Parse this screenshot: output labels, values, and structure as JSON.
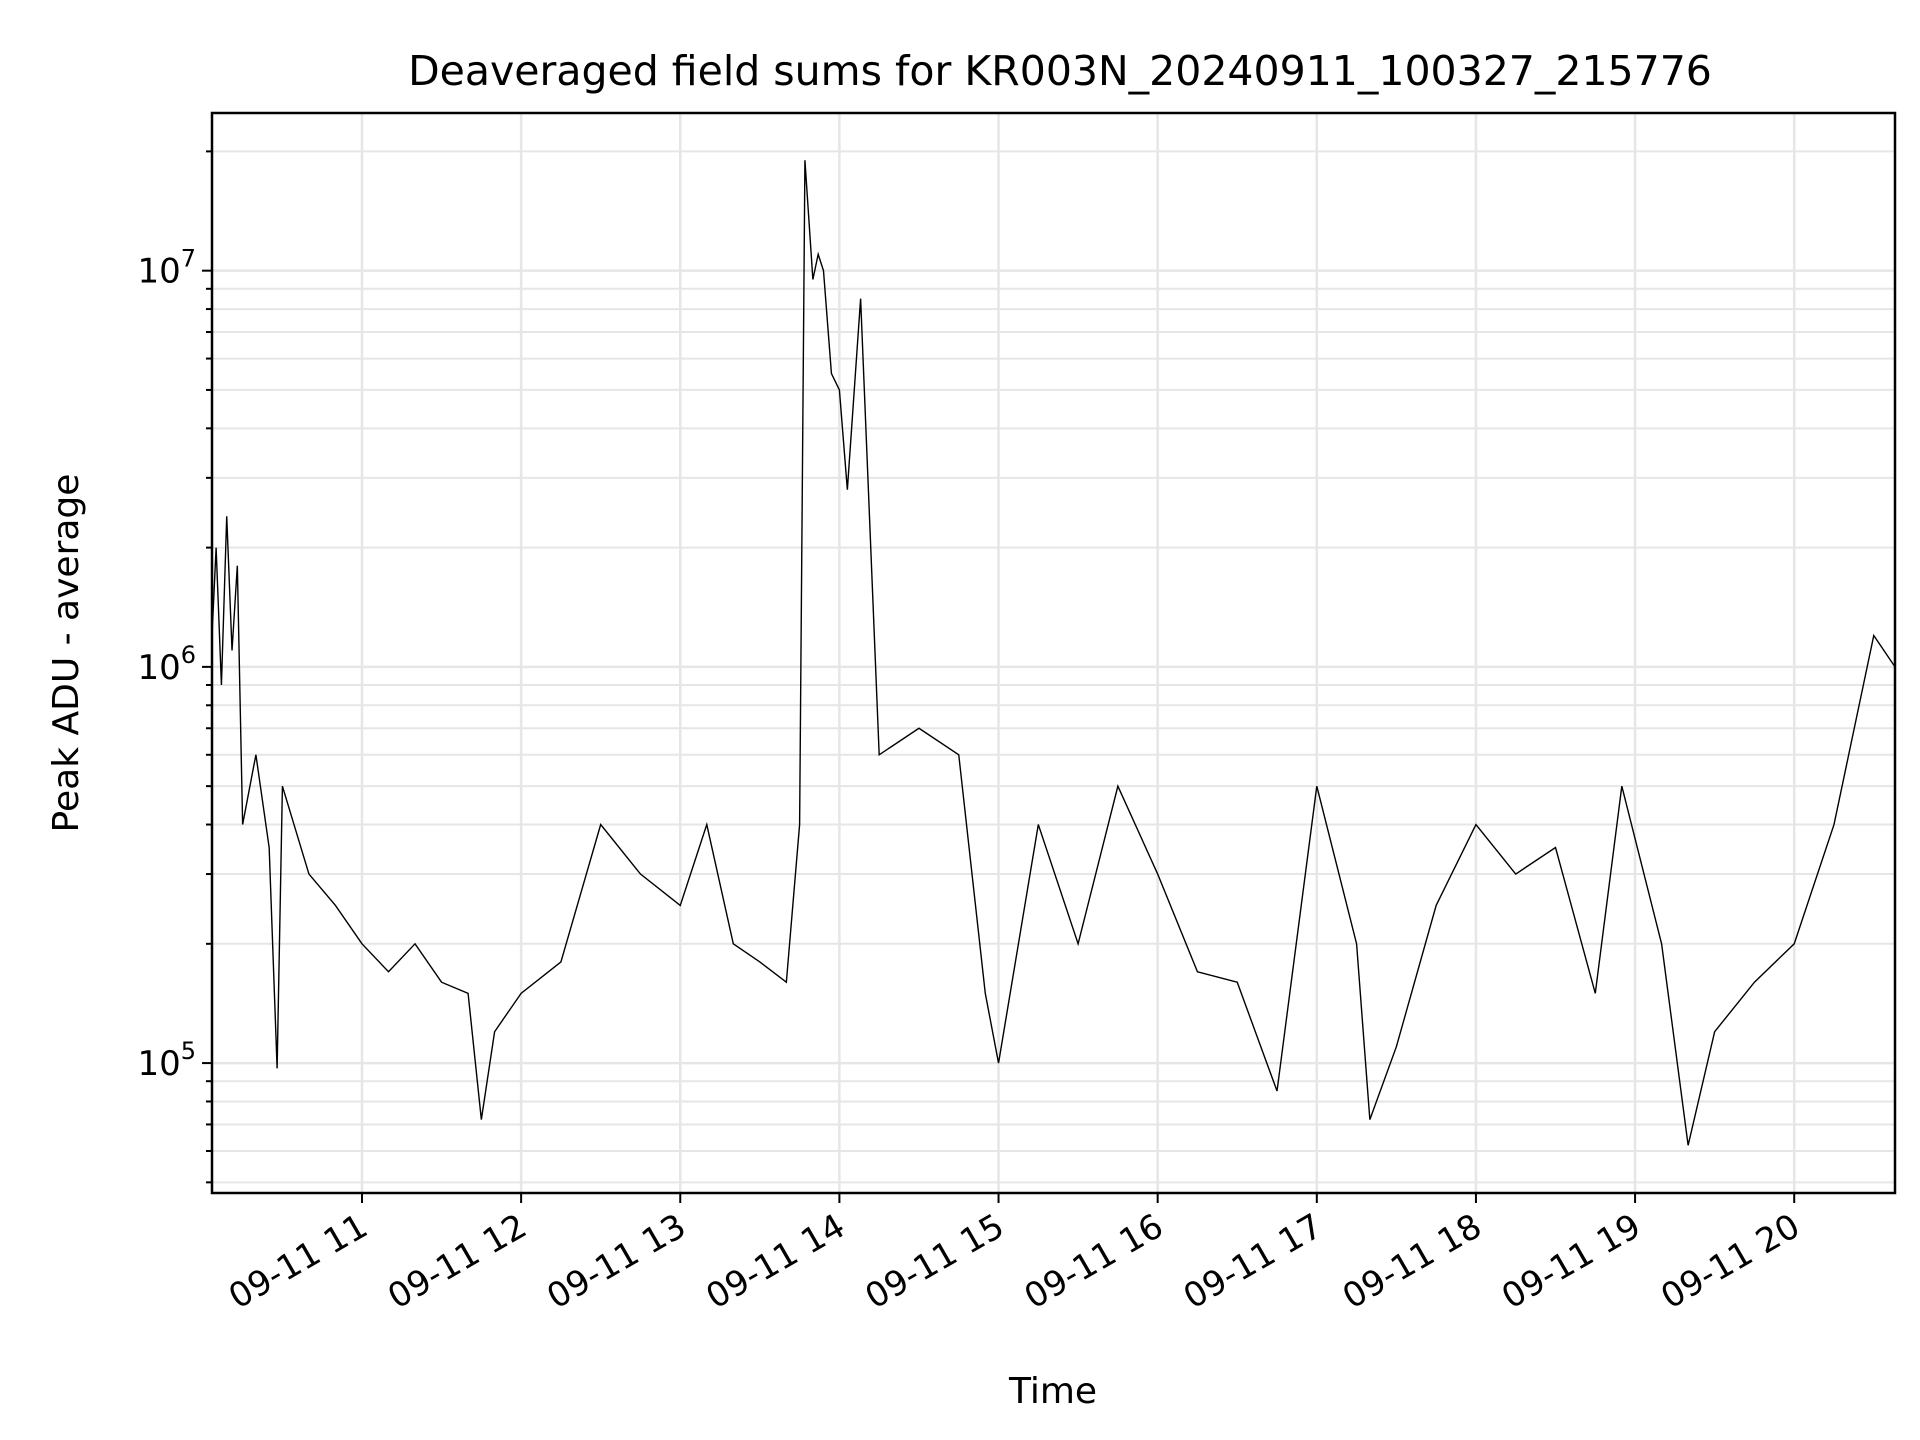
{
  "chart_data": {
    "type": "line",
    "title": "Deaveraged field sums for KR003N_20240911_100327_215776",
    "xlabel": "Time",
    "ylabel": "Peak ADU - average",
    "yscale": "log",
    "grid": true,
    "legend": "none",
    "x_start": "2024-09-11 10:03:27",
    "x_end": "2024-09-11 20:38",
    "xlim": [
      "2024-09-11 10:03:27",
      "2024-09-11 20:38"
    ],
    "ylim": [
      47000,
      25000000
    ],
    "x_tick_labels": [
      "09-11 11",
      "09-11 12",
      "09-11 13",
      "09-11 14",
      "09-11 15",
      "09-11 16",
      "09-11 17",
      "09-11 18",
      "09-11 19",
      "09-11 20"
    ],
    "x_tick_times": [
      "2024-09-11 11:00",
      "2024-09-11 12:00",
      "2024-09-11 13:00",
      "2024-09-11 14:00",
      "2024-09-11 15:00",
      "2024-09-11 16:00",
      "2024-09-11 17:00",
      "2024-09-11 18:00",
      "2024-09-11 19:00",
      "2024-09-11 20:00"
    ],
    "y_ticks": [
      {
        "value": 100000,
        "base": "10",
        "exp": "5"
      },
      {
        "value": 1000000,
        "base": "10",
        "exp": "6"
      },
      {
        "value": 10000000,
        "base": "10",
        "exp": "7"
      }
    ],
    "series": [
      {
        "color": "#000000",
        "points": [
          [
            "2024-09-11 10:03:27",
            1200000
          ],
          [
            "2024-09-11 10:05",
            2000000
          ],
          [
            "2024-09-11 10:07",
            900000
          ],
          [
            "2024-09-11 10:09",
            2400000
          ],
          [
            "2024-09-11 10:11",
            1100000
          ],
          [
            "2024-09-11 10:13",
            1800000
          ],
          [
            "2024-09-11 10:15",
            400000
          ],
          [
            "2024-09-11 10:20",
            600000
          ],
          [
            "2024-09-11 10:25",
            350000
          ],
          [
            "2024-09-11 10:28",
            97000
          ],
          [
            "2024-09-11 10:30",
            500000
          ],
          [
            "2024-09-11 10:40",
            300000
          ],
          [
            "2024-09-11 10:50",
            250000
          ],
          [
            "2024-09-11 11:00",
            200000
          ],
          [
            "2024-09-11 11:10",
            170000
          ],
          [
            "2024-09-11 11:20",
            200000
          ],
          [
            "2024-09-11 11:30",
            160000
          ],
          [
            "2024-09-11 11:40",
            150000
          ],
          [
            "2024-09-11 11:45",
            72000
          ],
          [
            "2024-09-11 11:50",
            120000
          ],
          [
            "2024-09-11 12:00",
            150000
          ],
          [
            "2024-09-11 12:15",
            180000
          ],
          [
            "2024-09-11 12:30",
            400000
          ],
          [
            "2024-09-11 12:45",
            300000
          ],
          [
            "2024-09-11 13:00",
            250000
          ],
          [
            "2024-09-11 13:10",
            400000
          ],
          [
            "2024-09-11 13:20",
            200000
          ],
          [
            "2024-09-11 13:30",
            180000
          ],
          [
            "2024-09-11 13:40",
            160000
          ],
          [
            "2024-09-11 13:45",
            400000
          ],
          [
            "2024-09-11 13:47",
            19000000
          ],
          [
            "2024-09-11 13:50",
            9500000
          ],
          [
            "2024-09-11 13:52",
            11000000
          ],
          [
            "2024-09-11 13:54",
            10000000
          ],
          [
            "2024-09-11 13:57",
            5500000
          ],
          [
            "2024-09-11 14:00",
            5000000
          ],
          [
            "2024-09-11 14:03",
            2800000
          ],
          [
            "2024-09-11 14:08",
            8500000
          ],
          [
            "2024-09-11 14:15",
            600000
          ],
          [
            "2024-09-11 14:30",
            700000
          ],
          [
            "2024-09-11 14:45",
            600000
          ],
          [
            "2024-09-11 14:55",
            150000
          ],
          [
            "2024-09-11 15:00",
            100000
          ],
          [
            "2024-09-11 15:15",
            400000
          ],
          [
            "2024-09-11 15:30",
            200000
          ],
          [
            "2024-09-11 15:45",
            500000
          ],
          [
            "2024-09-11 16:00",
            300000
          ],
          [
            "2024-09-11 16:15",
            170000
          ],
          [
            "2024-09-11 16:30",
            160000
          ],
          [
            "2024-09-11 16:45",
            85000
          ],
          [
            "2024-09-11 17:00",
            500000
          ],
          [
            "2024-09-11 17:15",
            200000
          ],
          [
            "2024-09-11 17:20",
            72000
          ],
          [
            "2024-09-11 17:30",
            110000
          ],
          [
            "2024-09-11 17:45",
            250000
          ],
          [
            "2024-09-11 18:00",
            400000
          ],
          [
            "2024-09-11 18:15",
            300000
          ],
          [
            "2024-09-11 18:30",
            350000
          ],
          [
            "2024-09-11 18:45",
            150000
          ],
          [
            "2024-09-11 18:55",
            500000
          ],
          [
            "2024-09-11 19:10",
            200000
          ],
          [
            "2024-09-11 19:20",
            62000
          ],
          [
            "2024-09-11 19:30",
            120000
          ],
          [
            "2024-09-11 19:45",
            160000
          ],
          [
            "2024-09-11 20:00",
            200000
          ],
          [
            "2024-09-11 20:15",
            400000
          ],
          [
            "2024-09-11 20:30",
            1200000
          ],
          [
            "2024-09-11 20:38",
            1000000
          ]
        ]
      }
    ]
  }
}
